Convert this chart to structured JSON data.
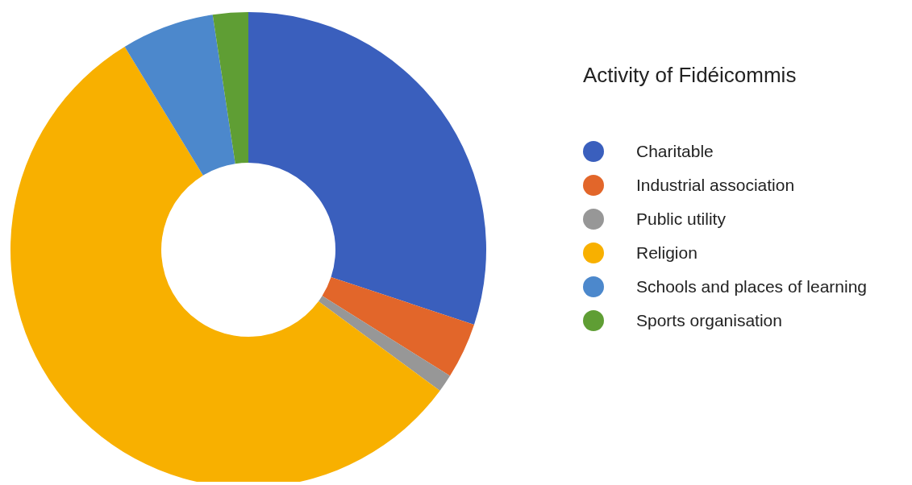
{
  "chart_data": {
    "type": "donut",
    "legend_title": "Activity of Fidéicommis",
    "categories": [
      "Charitable",
      "Industrial association",
      "Public utility",
      "Religion",
      "Schools and places of learning",
      "Sports organisation"
    ],
    "values": [
      30.1,
      3.8,
      1.2,
      56.2,
      6.3,
      2.4
    ],
    "colors": [
      "#3a5fbd",
      "#e2662a",
      "#979797",
      "#f8b000",
      "#4c88cc",
      "#5f9e34"
    ],
    "legend": "right"
  }
}
